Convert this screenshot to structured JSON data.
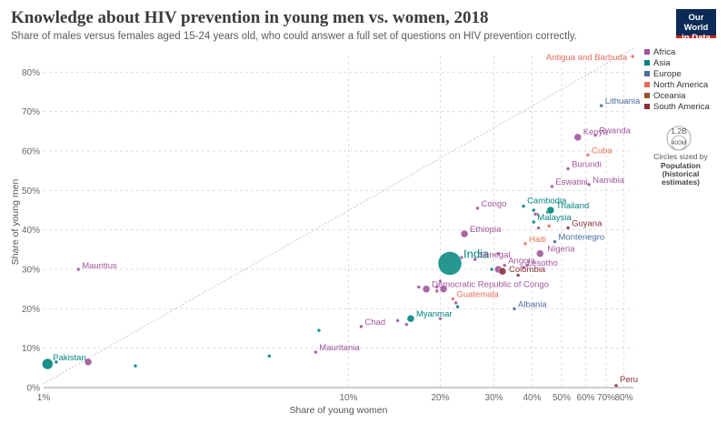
{
  "header": {
    "title": "Knowledge about HIV prevention in young men vs. women, 2018",
    "subtitle": "Share of males versus females aged 15-24 years old, who could answer a full set of questions on HIV prevention correctly.",
    "logo_line1": "Our World",
    "logo_line2": "in Data"
  },
  "colors": {
    "Africa": "#a2559c",
    "Asia": "#00847e",
    "Europe": "#4c6a9c",
    "North America": "#e56e5a",
    "Oceania": "#9a5129",
    "South America": "#883039"
  },
  "size_legend": {
    "large_label": "1.2B",
    "small_label": "400M",
    "caption": "Circles sized by",
    "title_line1": "Population",
    "title_line2": "(historical",
    "title_line3": "estimates)"
  },
  "chart_data": {
    "type": "scatter",
    "title": "Knowledge about HIV prevention in young men vs. women, 2018",
    "xlabel": "Share of young women",
    "ylabel": "Share of young men",
    "x_scale": "log",
    "xlim": [
      1,
      86
    ],
    "ylim": [
      0,
      84
    ],
    "x_ticks": [
      "1%",
      "10%",
      "20%",
      "30%",
      "40%",
      "50%",
      "60%",
      "70%",
      "80%"
    ],
    "y_ticks": [
      "0%",
      "10%",
      "20%",
      "30%",
      "40%",
      "50%",
      "60%",
      "70%",
      "80%"
    ],
    "grid": true,
    "diagonal_line": true,
    "legend": [
      "Africa",
      "Asia",
      "Europe",
      "North America",
      "Oceania",
      "South America"
    ],
    "legend_position": "right",
    "points": [
      {
        "label": "Antigua and Barbuda",
        "x": 85.5,
        "y": 84.0,
        "region": "North America",
        "size": "small"
      },
      {
        "label": "Lithuania",
        "x": 67.5,
        "y": 71.5,
        "region": "Europe",
        "size": "small"
      },
      {
        "label": "Kenya",
        "x": 56.5,
        "y": 63.5,
        "region": "Africa",
        "size": "medium"
      },
      {
        "label": "Rwanda",
        "x": 64.5,
        "y": 64.0,
        "region": "Africa",
        "size": "small"
      },
      {
        "label": "Cuba",
        "x": 61.0,
        "y": 59.0,
        "region": "North America",
        "size": "small"
      },
      {
        "label": "Burundi",
        "x": 52.5,
        "y": 55.5,
        "region": "Africa",
        "size": "small"
      },
      {
        "label": "Namibia",
        "x": 61.5,
        "y": 51.5,
        "region": "Africa",
        "size": "small"
      },
      {
        "label": "Eswatini",
        "x": 46.5,
        "y": 51.0,
        "region": "Africa",
        "size": "small"
      },
      {
        "label": "Congo",
        "x": 26.5,
        "y": 45.5,
        "region": "Africa",
        "size": "small"
      },
      {
        "label": "Cambodia",
        "x": 37.5,
        "y": 46.0,
        "region": "Asia",
        "size": "small"
      },
      {
        "label": "Thailand",
        "x": 46.0,
        "y": 45.0,
        "region": "Asia",
        "size": "medium"
      },
      {
        "label": "Malaysia",
        "x": 40.5,
        "y": 42.0,
        "region": "Asia",
        "size": "small"
      },
      {
        "label": "Guyana",
        "x": 52.5,
        "y": 40.5,
        "region": "South America",
        "size": "small"
      },
      {
        "label": "Ethiopia",
        "x": 24.0,
        "y": 39.0,
        "region": "Africa",
        "size": "medium"
      },
      {
        "label": "Montenegro",
        "x": 47.5,
        "y": 37.0,
        "region": "Europe",
        "size": "small"
      },
      {
        "label": "Haiti",
        "x": 38.0,
        "y": 36.5,
        "region": "North America",
        "size": "small"
      },
      {
        "label": "Nigeria",
        "x": 42.5,
        "y": 34.0,
        "region": "Africa",
        "size": "medium"
      },
      {
        "label": "India",
        "x": 21.5,
        "y": 31.5,
        "region": "Asia",
        "size": "xlarge"
      },
      {
        "label": "Senegal",
        "x": 26.0,
        "y": 32.5,
        "region": "Africa",
        "size": "small"
      },
      {
        "label": "Angola",
        "x": 32.5,
        "y": 31.0,
        "region": "Africa",
        "size": "small"
      },
      {
        "label": "Mauritius",
        "x": 1.3,
        "y": 30.0,
        "region": "Africa",
        "size": "small"
      },
      {
        "label": "Lesotho",
        "x": 37.5,
        "y": 30.5,
        "region": "Africa",
        "size": "small"
      },
      {
        "label": "Colombia",
        "x": 32.0,
        "y": 29.5,
        "region": "South America",
        "size": "medium"
      },
      {
        "label": "Democratic Republic of Congo",
        "x": 18.0,
        "y": 25.0,
        "region": "Africa",
        "size": "medium"
      },
      {
        "label": "Guatemala",
        "x": 22.0,
        "y": 22.5,
        "region": "North America",
        "size": "small"
      },
      {
        "label": "Albania",
        "x": 35.0,
        "y": 20.0,
        "region": "Europe",
        "size": "small"
      },
      {
        "label": "Myanmar",
        "x": 16.0,
        "y": 17.5,
        "region": "Asia",
        "size": "medium"
      },
      {
        "label": "Chad",
        "x": 11.0,
        "y": 15.5,
        "region": "Africa",
        "size": "small"
      },
      {
        "label": "Mauritania",
        "x": 7.8,
        "y": 9.0,
        "region": "Africa",
        "size": "small"
      },
      {
        "label": "Pakistan",
        "x": 1.03,
        "y": 6.0,
        "region": "Asia",
        "size": "large"
      },
      {
        "label": "Peru",
        "x": 75.5,
        "y": 0.5,
        "region": "South America",
        "size": "small"
      }
    ],
    "unlabeled_points": [
      {
        "x": 19.5,
        "y": 25.5,
        "region": "Africa",
        "size": "small"
      },
      {
        "x": 20.5,
        "y": 25.0,
        "region": "Africa",
        "size": "medium"
      },
      {
        "x": 19.5,
        "y": 24.5,
        "region": "Africa",
        "size": "small"
      },
      {
        "x": 17.0,
        "y": 25.5,
        "region": "Africa",
        "size": "small"
      },
      {
        "x": 20.0,
        "y": 27.0,
        "region": "Africa",
        "size": "small"
      },
      {
        "x": 23.5,
        "y": 33.0,
        "region": "Africa",
        "size": "small"
      },
      {
        "x": 29.5,
        "y": 30.0,
        "region": "Asia",
        "size": "small"
      },
      {
        "x": 31.0,
        "y": 34.0,
        "region": "Africa",
        "size": "small"
      },
      {
        "x": 31.0,
        "y": 30.0,
        "region": "Africa",
        "size": "medium"
      },
      {
        "x": 36.0,
        "y": 28.5,
        "region": "South America",
        "size": "small"
      },
      {
        "x": 38.5,
        "y": 31.0,
        "region": "Africa",
        "size": "small"
      },
      {
        "x": 40.5,
        "y": 45.0,
        "region": "Asia",
        "size": "small"
      },
      {
        "x": 41.5,
        "y": 44.0,
        "region": "Africa",
        "size": "small"
      },
      {
        "x": 41.0,
        "y": 44.0,
        "region": "Africa",
        "size": "small"
      },
      {
        "x": 42.0,
        "y": 40.5,
        "region": "Africa",
        "size": "small"
      },
      {
        "x": 45.5,
        "y": 41.0,
        "region": "North America",
        "size": "small"
      },
      {
        "x": 45.0,
        "y": 44.5,
        "region": "Asia",
        "size": "small"
      },
      {
        "x": 20.0,
        "y": 17.5,
        "region": "Africa",
        "size": "small"
      },
      {
        "x": 22.5,
        "y": 21.5,
        "region": "Africa",
        "size": "small"
      },
      {
        "x": 22.8,
        "y": 20.5,
        "region": "Asia",
        "size": "small"
      },
      {
        "x": 14.5,
        "y": 17.0,
        "region": "Africa",
        "size": "small"
      },
      {
        "x": 15.5,
        "y": 16.0,
        "region": "Africa",
        "size": "small"
      },
      {
        "x": 8.0,
        "y": 14.5,
        "region": "Asia",
        "size": "small"
      },
      {
        "x": 5.5,
        "y": 8.0,
        "region": "Asia",
        "size": "small"
      },
      {
        "x": 1.4,
        "y": 6.5,
        "region": "Africa",
        "size": "medium"
      },
      {
        "x": 1.1,
        "y": 6.5,
        "region": "Asia",
        "size": "small"
      },
      {
        "x": 2.0,
        "y": 5.5,
        "region": "Asia",
        "size": "small"
      }
    ]
  }
}
